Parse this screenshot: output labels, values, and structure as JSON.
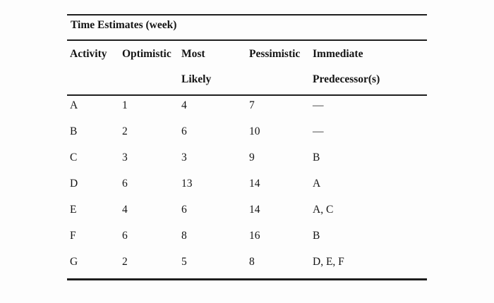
{
  "table": {
    "title": "Time Estimates (week)",
    "columns": [
      "Activity",
      "Optimistic",
      "Most\nLikely",
      "Pessimistic",
      "Immediate\nPredecessor(s)"
    ],
    "rows": [
      {
        "activity": "A",
        "optimistic": "1",
        "most_likely": "4",
        "pessimistic": "7",
        "predecessors": "—"
      },
      {
        "activity": "B",
        "optimistic": "2",
        "most_likely": "6",
        "pessimistic": "10",
        "predecessors": "—"
      },
      {
        "activity": "C",
        "optimistic": "3",
        "most_likely": "3",
        "pessimistic": "9",
        "predecessors": "B"
      },
      {
        "activity": "D",
        "optimistic": "6",
        "most_likely": "13",
        "pessimistic": "14",
        "predecessors": "A"
      },
      {
        "activity": "E",
        "optimistic": "4",
        "most_likely": "6",
        "pessimistic": "14",
        "predecessors": "A, C"
      },
      {
        "activity": "F",
        "optimistic": "6",
        "most_likely": "8",
        "pessimistic": "16",
        "predecessors": "B"
      },
      {
        "activity": "G",
        "optimistic": "2",
        "most_likely": "5",
        "pessimistic": "8",
        "predecessors": "D, E, F"
      }
    ]
  },
  "colors": {
    "rule": "#1e1e1e",
    "text": "#141414",
    "background": "#fdfdfd"
  }
}
